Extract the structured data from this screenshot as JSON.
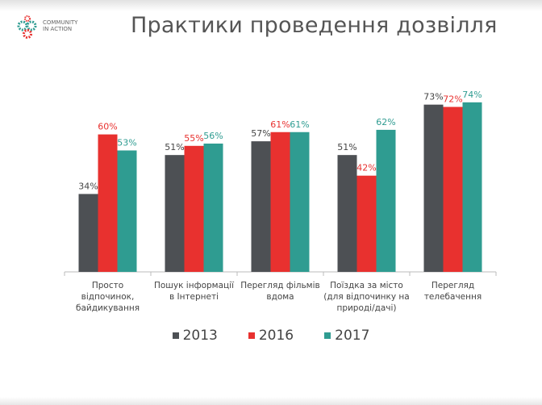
{
  "title": "Практики проведення дозвілля",
  "logo": {
    "line1": "COMMUNITY",
    "line2": "IN ACTION"
  },
  "chart_data": {
    "type": "bar",
    "title": "Практики проведення дозвілля",
    "categories": [
      "Просто відпочинок, байдикування",
      "Пошук інформації в Інтернеті",
      "Перегляд фільмів вдома",
      "Поїздка за місто (для відпочинку на природі/дачі)",
      "Перегляд телебачення"
    ],
    "series": [
      {
        "name": "2013",
        "color": "#4d5054",
        "values": [
          34,
          51,
          57,
          51,
          73
        ]
      },
      {
        "name": "2016",
        "color": "#e8312f",
        "values": [
          60,
          55,
          61,
          42,
          72
        ]
      },
      {
        "name": "2017",
        "color": "#2f9c91",
        "values": [
          53,
          56,
          61,
          62,
          74
        ]
      }
    ],
    "ylim": [
      0,
      80
    ],
    "value_suffix": "%",
    "legend": "bottom",
    "grid": false
  }
}
